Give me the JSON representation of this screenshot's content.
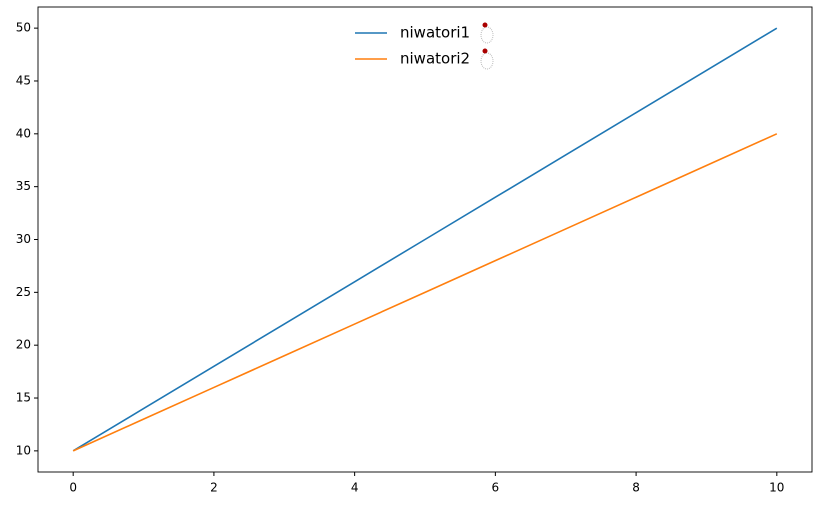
{
  "chart_data": {
    "type": "line",
    "x": [
      0,
      1,
      2,
      3,
      4,
      5,
      6,
      7,
      8,
      9,
      10
    ],
    "series": [
      {
        "name": "niwatori1",
        "color": "#1f77b4",
        "values": [
          10,
          14,
          18,
          22,
          26,
          30,
          34,
          38,
          42,
          46,
          50
        ]
      },
      {
        "name": "niwatori2",
        "color": "#ff7f0e",
        "values": [
          10,
          13,
          16,
          19,
          22,
          25,
          28,
          31,
          34,
          37,
          40
        ]
      }
    ],
    "xlim": [
      -0.5,
      10.5
    ],
    "xticks": [
      0,
      2,
      4,
      6,
      8,
      10
    ],
    "ylim": [
      8,
      52
    ],
    "yticks": [
      10,
      15,
      20,
      25,
      30,
      35,
      40,
      45,
      50
    ],
    "legend": "upper center"
  }
}
